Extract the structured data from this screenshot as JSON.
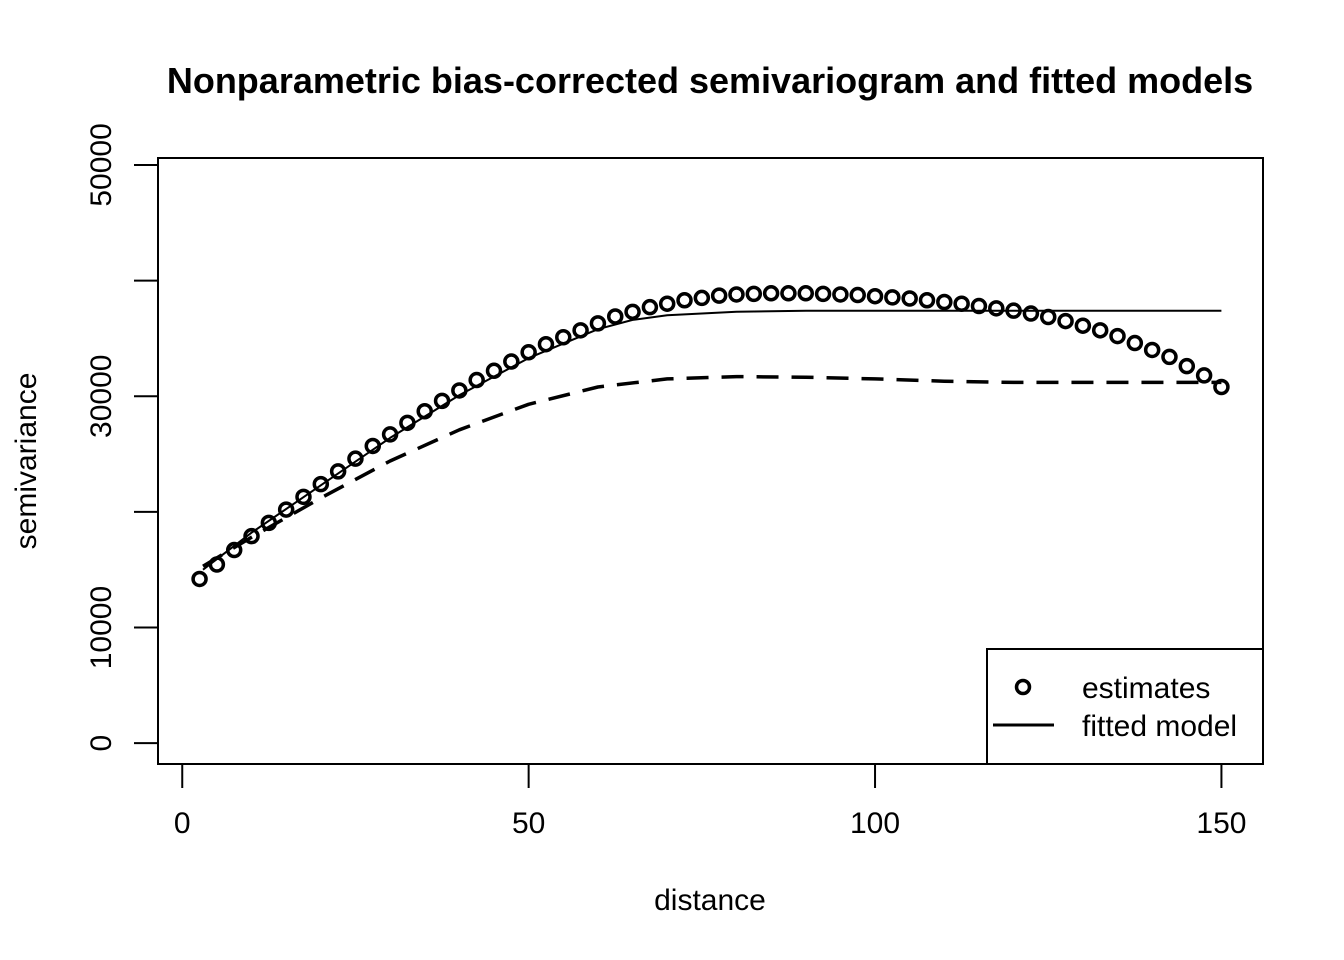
{
  "chart_data": {
    "type": "scatter",
    "title": "Nonparametric bias-corrected semivariogram and fitted models",
    "xlabel": "distance",
    "ylabel": "semivariance",
    "xlim": [
      -3.5,
      156
    ],
    "ylim": [
      -1800,
      50600
    ],
    "xticks": [
      0,
      50,
      100,
      150
    ],
    "yticks": [
      0,
      10000,
      20000,
      30000,
      40000,
      50000
    ],
    "ytick_labels_shown": [
      "0",
      "10000",
      "30000",
      "50000"
    ],
    "grid": false,
    "legend_position": "bottom-right",
    "colors": {
      "foreground": "#000000",
      "background": "#ffffff"
    },
    "series": [
      {
        "name": "estimates",
        "kind": "points",
        "x": [
          2.5,
          5,
          7.5,
          10,
          12.5,
          15,
          17.5,
          20,
          22.5,
          25,
          27.5,
          30,
          32.5,
          35,
          37.5,
          40,
          42.5,
          45,
          47.5,
          50,
          52.5,
          55,
          57.5,
          60,
          62.5,
          65,
          67.5,
          70,
          72.5,
          75,
          77.5,
          80,
          82.5,
          85,
          87.5,
          90,
          92.5,
          95,
          97.5,
          100,
          102.5,
          105,
          107.5,
          110,
          112.5,
          115,
          117.5,
          120,
          122.5,
          125,
          127.5,
          130,
          132.5,
          135,
          137.5,
          140,
          142.5,
          145,
          147.5,
          150
        ],
        "y": [
          14200,
          15450,
          16700,
          17900,
          19050,
          20200,
          21300,
          22400,
          23500,
          24600,
          25700,
          26700,
          27700,
          28700,
          29600,
          30500,
          31400,
          32200,
          33000,
          33800,
          34500,
          35100,
          35700,
          36300,
          36900,
          37300,
          37700,
          38000,
          38300,
          38500,
          38700,
          38800,
          38850,
          38900,
          38900,
          38900,
          38850,
          38800,
          38750,
          38650,
          38550,
          38450,
          38300,
          38150,
          38000,
          37800,
          37600,
          37400,
          37150,
          36850,
          36500,
          36100,
          35700,
          35200,
          34600,
          34000,
          33400,
          32600,
          31800,
          30800
        ]
      },
      {
        "name": "fitted model",
        "kind": "solid-line",
        "x": [
          3,
          10,
          20,
          30,
          40,
          50,
          60,
          65,
          70,
          80,
          90,
          100,
          110,
          120,
          130,
          140,
          150
        ],
        "y": [
          15000,
          18200,
          22300,
          26400,
          30100,
          33300,
          35800,
          36600,
          37000,
          37300,
          37400,
          37400,
          37400,
          37400,
          37400,
          37400,
          37400
        ]
      },
      {
        "kind": "dashed-line",
        "x": [
          3,
          10,
          20,
          30,
          40,
          50,
          60,
          70,
          80,
          90,
          100,
          110,
          120,
          130,
          140,
          150
        ],
        "y": [
          15300,
          17800,
          21200,
          24400,
          27100,
          29300,
          30800,
          31500,
          31700,
          31650,
          31500,
          31300,
          31200,
          31200,
          31200,
          31200
        ]
      }
    ],
    "legend": [
      {
        "label": "estimates",
        "symbol": "circle"
      },
      {
        "label": "fitted model",
        "symbol": "solid-line"
      }
    ]
  }
}
